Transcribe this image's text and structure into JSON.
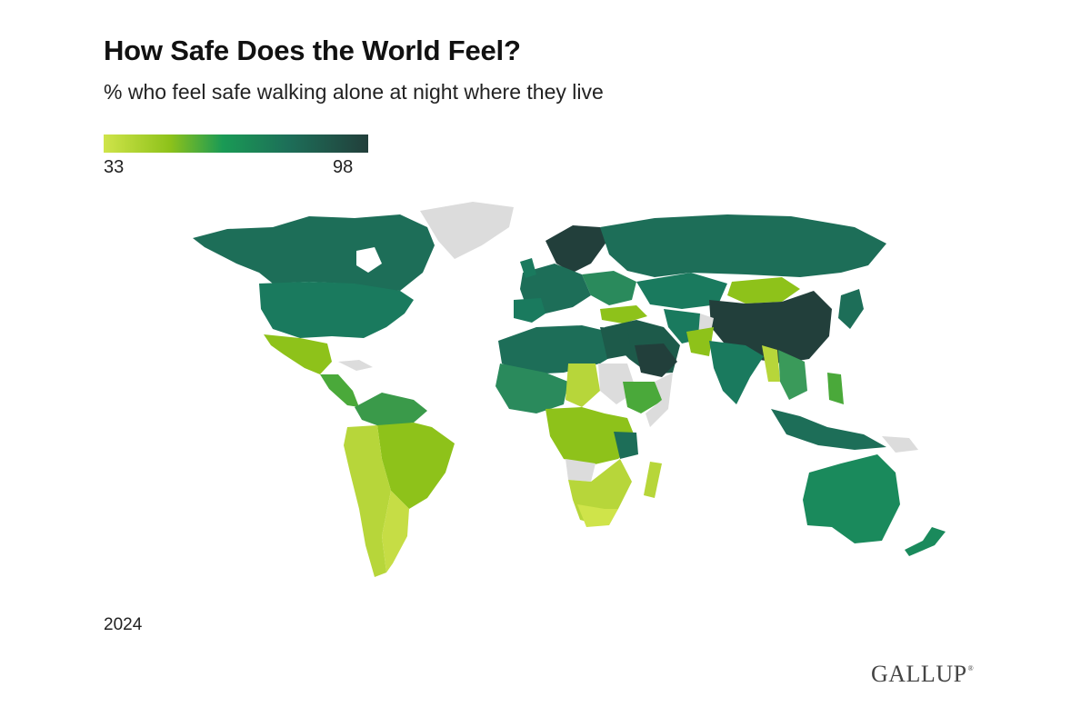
{
  "header": {
    "title": "How Safe Does the World Feel?",
    "subtitle": "% who feel safe walking alone at night where they live"
  },
  "legend": {
    "min_label": "33",
    "max_label": "98",
    "min_value": 33,
    "max_value": 98,
    "gradient_colors": [
      "#cfe44a",
      "#8ec21a",
      "#1a9a55",
      "#1d6e58",
      "#223f3b"
    ]
  },
  "map": {
    "colors": {
      "no_data": "#dcdcdc",
      "background": "#ffffff"
    }
  },
  "footer": {
    "year": "2024",
    "brand": "GALLUP"
  }
}
